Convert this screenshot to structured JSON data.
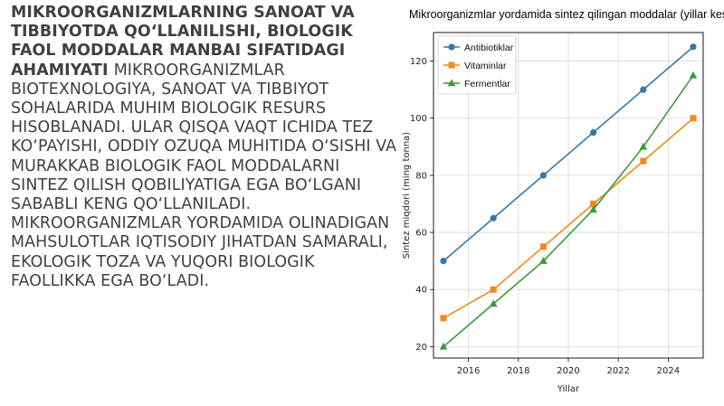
{
  "text": {
    "heading": "MIKROORGANIZMLARNING SANOAT VA TIBBIYOTDA QO‘LLANILISHI, BIOLOGIK FAOL MODDALAR MANBAI SIFATIDAGI AHAMIYATI",
    "body": "MIKROORGANIZMLAR BIOTEXNOLOGIYA, SANOAT VA TIBBIYOT SOHALARIDA MUHIM BIOLOGIK RESURS HISOBLANADI. ULAR QISQA VAQT ICHIDA TEZ KO‘PAYISHI, ODDIY OZUQA MUHITIDA O‘SISHI VA MURAKKAB BIOLOGIK FAOL MODDALARNI SINTEZ QILISH QOBILIYATIGA EGA BO‘LGANI SABABLI KENG QO‘LLANILADI. MIKROORGANIZMLAR YORDAMIDA OLINADIGAN MAHSULOTLAR IQTISODIY JIHATDAN SAMARALI, EKOLOGIK TOZA VA YUQORI BIOLOGIK FAOLLIKKA EGA BO‘LADI."
  },
  "chart_data": {
    "type": "line",
    "title": "Mikroorganizmlar yordamida sintez qilingan moddalar (yillar kesimida)",
    "xlabel": "Yillar",
    "ylabel": "Sintez miqdori (ming tonna)",
    "x": [
      2015,
      2017,
      2019,
      2021,
      2023,
      2025
    ],
    "xlim": [
      2014.6,
      2025.4
    ],
    "ylim": [
      16,
      130
    ],
    "xticks": [
      2016,
      2018,
      2020,
      2022,
      2024
    ],
    "yticks": [
      20,
      40,
      60,
      80,
      100,
      120
    ],
    "grid": true,
    "legend_position": "top-left",
    "series": [
      {
        "name": "Antibiotiklar",
        "values": [
          50,
          65,
          80,
          95,
          110,
          125
        ],
        "color": "#3a77a8",
        "marker": "circle"
      },
      {
        "name": "Vitaminlar",
        "values": [
          30,
          40,
          55,
          70,
          85,
          100
        ],
        "color": "#f28a1c",
        "marker": "square"
      },
      {
        "name": "Fermentlar",
        "values": [
          20,
          35,
          50,
          68,
          90,
          115
        ],
        "color": "#3c9a3c",
        "marker": "triangle"
      }
    ]
  }
}
